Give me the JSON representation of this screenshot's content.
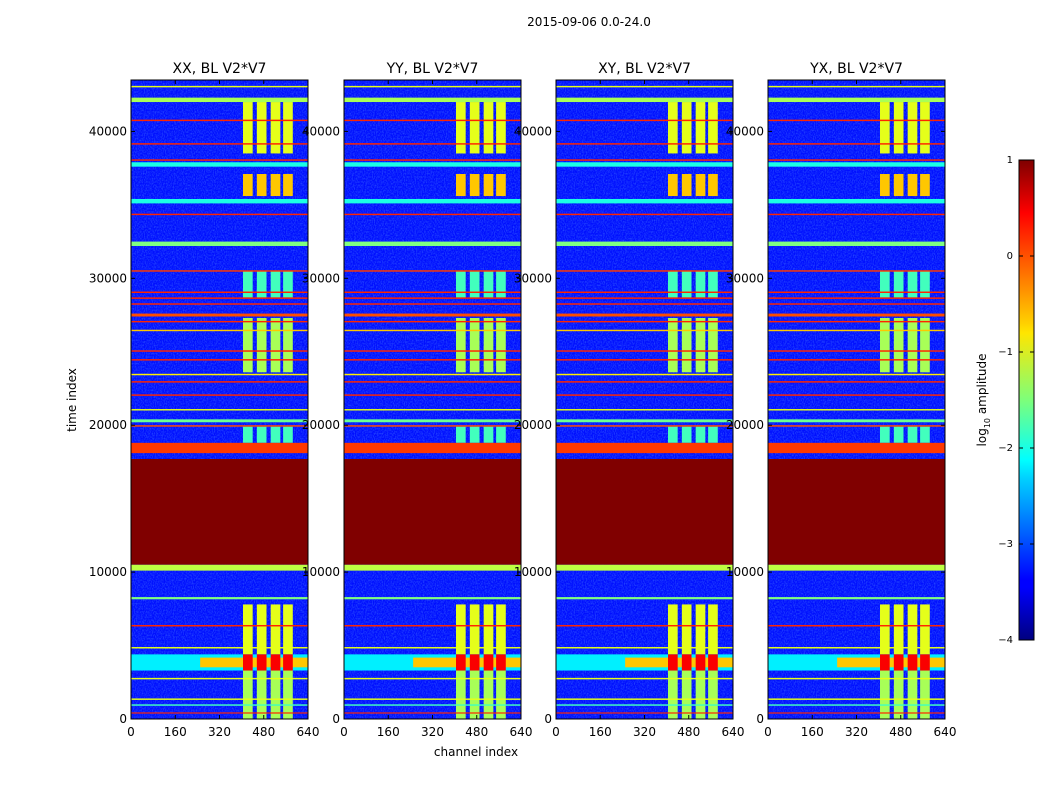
{
  "chart_data": {
    "type": "heatmap",
    "suptitle": "2015-09-06 0.0-24.0",
    "xlabel": "channel index",
    "ylabel": "time index",
    "xlim": [
      0,
      640
    ],
    "ylim": [
      0,
      43500
    ],
    "xticks": [
      0,
      160,
      320,
      480,
      640
    ],
    "yticks": [
      0,
      10000,
      20000,
      30000,
      40000
    ],
    "panels": [
      {
        "title": "XX, BL V2*V7",
        "polarization": "XX",
        "baseline": "V2*V7"
      },
      {
        "title": "YY, BL V2*V7",
        "polarization": "YY",
        "baseline": "V2*V7"
      },
      {
        "title": "XY, BL V2*V7",
        "polarization": "XY",
        "baseline": "V2*V7"
      },
      {
        "title": "YX, BL V2*V7",
        "polarization": "YX",
        "baseline": "V2*V7"
      }
    ],
    "colorbar": {
      "label": "log10 amplitude",
      "min": -4,
      "max": 1,
      "ticks": [
        -4,
        -3,
        -2,
        -1,
        0,
        1
      ],
      "tick_labels": [
        "−4",
        "−3",
        "−2",
        "−1",
        "0",
        "1"
      ]
    },
    "background_log_amplitude": -3.3,
    "signal_channel_bands": [
      [
        405,
        440
      ],
      [
        455,
        490
      ],
      [
        505,
        540
      ],
      [
        550,
        585
      ]
    ],
    "rows": [
      {
        "from": 10500,
        "to": 17700,
        "value": 1.0,
        "kind": "full"
      },
      {
        "from": 18100,
        "to": 18800,
        "value": 0.1,
        "kind": "full"
      },
      {
        "from": 10100,
        "to": 10500,
        "value": -1.2,
        "kind": "full"
      },
      {
        "from": 3300,
        "to": 4400,
        "value": 0.4,
        "kind": "taper"
      },
      {
        "from": 8150,
        "to": 8300,
        "value": -1.5,
        "kind": "full"
      },
      {
        "from": 42000,
        "to": 42300,
        "value": -1.3,
        "kind": "full"
      },
      {
        "from": 32200,
        "to": 32500,
        "value": -1.5,
        "kind": "full"
      },
      {
        "from": 27400,
        "to": 27600,
        "value": 0.0,
        "kind": "full"
      },
      {
        "from": 20200,
        "to": 20400,
        "value": -1.6,
        "kind": "full"
      },
      {
        "from": 19900,
        "to": 20000,
        "value": 0.0,
        "kind": "full"
      },
      {
        "from": 38000,
        "to": 38100,
        "value": 0.2,
        "kind": "full"
      },
      {
        "from": 37600,
        "to": 37900,
        "value": -2.0,
        "kind": "full"
      },
      {
        "from": 35100,
        "to": 35400,
        "value": -2.0,
        "kind": "full"
      },
      {
        "from": 30450,
        "to": 30550,
        "value": 0.1,
        "kind": "full"
      },
      {
        "from": 29000,
        "to": 29100,
        "value": 0.2,
        "kind": "full"
      },
      {
        "from": 28600,
        "to": 28700,
        "value": 0.2,
        "kind": "full"
      },
      {
        "from": 28200,
        "to": 28300,
        "value": 0.2,
        "kind": "full"
      },
      {
        "from": 27000,
        "to": 27100,
        "value": 0.2,
        "kind": "full"
      },
      {
        "from": 26400,
        "to": 26500,
        "value": -0.6,
        "kind": "full"
      },
      {
        "from": 25000,
        "to": 25100,
        "value": 0.2,
        "kind": "full"
      },
      {
        "from": 24400,
        "to": 24500,
        "value": 0.2,
        "kind": "full"
      },
      {
        "from": 23400,
        "to": 23500,
        "value": -0.8,
        "kind": "full"
      },
      {
        "from": 22900,
        "to": 23000,
        "value": 0.2,
        "kind": "full"
      },
      {
        "from": 22000,
        "to": 22100,
        "value": 0.2,
        "kind": "full"
      },
      {
        "from": 21000,
        "to": 21100,
        "value": -1.0,
        "kind": "full"
      },
      {
        "from": 34300,
        "to": 34400,
        "value": 0.2,
        "kind": "full"
      },
      {
        "from": 39100,
        "to": 39200,
        "value": 0.2,
        "kind": "full"
      },
      {
        "from": 40700,
        "to": 40800,
        "value": 0.2,
        "kind": "full"
      },
      {
        "from": 43000,
        "to": 43100,
        "value": -1.0,
        "kind": "full"
      },
      {
        "from": 6300,
        "to": 6400,
        "value": 0.2,
        "kind": "full"
      },
      {
        "from": 4800,
        "to": 4900,
        "value": -1.0,
        "kind": "full"
      },
      {
        "from": 2700,
        "to": 2800,
        "value": -1.0,
        "kind": "full"
      },
      {
        "from": 1300,
        "to": 1400,
        "value": -1.0,
        "kind": "full"
      },
      {
        "from": 900,
        "to": 1000,
        "value": -1.8,
        "kind": "full"
      },
      {
        "from": 400,
        "to": 450,
        "value": 0.2,
        "kind": "full"
      }
    ],
    "band_rows": [
      {
        "from": 35600,
        "to": 37100,
        "value": -0.6
      },
      {
        "from": 38500,
        "to": 42000,
        "value": -1.0
      },
      {
        "from": 23600,
        "to": 27300,
        "value": -1.3
      },
      {
        "from": 4400,
        "to": 7800,
        "value": -1.0
      },
      {
        "from": 0,
        "to": 3300,
        "value": -1.3
      },
      {
        "from": 18800,
        "to": 19900,
        "value": -1.8
      },
      {
        "from": 28700,
        "to": 30500,
        "value": -1.8
      }
    ]
  }
}
